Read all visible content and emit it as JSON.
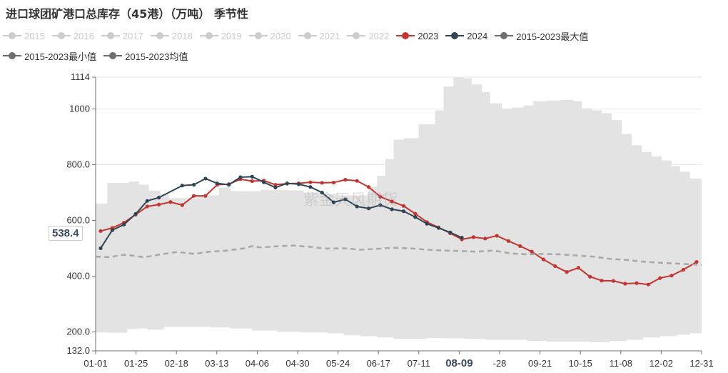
{
  "title": "进口球团矿港口总库存（45港）（万吨） 季节性",
  "watermark": "紫金天风期货",
  "legend_rows": [
    [
      {
        "label": "2015",
        "color": "#cccccc",
        "off": true
      },
      {
        "label": "2016",
        "color": "#cccccc",
        "off": true
      },
      {
        "label": "2017",
        "color": "#cccccc",
        "off": true
      },
      {
        "label": "2018",
        "color": "#cccccc",
        "off": true
      },
      {
        "label": "2019",
        "color": "#cccccc",
        "off": true
      },
      {
        "label": "2020",
        "color": "#cccccc",
        "off": true
      },
      {
        "label": "2021",
        "color": "#cccccc",
        "off": true
      },
      {
        "label": "2022",
        "color": "#cccccc",
        "off": true
      },
      {
        "label": "2023",
        "color": "#c23531",
        "off": false
      },
      {
        "label": "2024",
        "color": "#2f4554",
        "off": false
      },
      {
        "label": "2015-2023最大值",
        "color": "#6e6e6e",
        "off": false
      }
    ],
    [
      {
        "label": "2015-2023最小值",
        "color": "#6e6e6e",
        "off": false
      },
      {
        "label": "2015-2023均值",
        "color": "#6e6e6e",
        "off": false
      }
    ]
  ],
  "pointer": {
    "y_label": "538.4",
    "x_label": "08-09"
  },
  "chart_data": {
    "type": "line",
    "title": "进口球团矿港口总库存（45港）（万吨） 季节性",
    "x_ticks": [
      "01-01",
      "01-25",
      "02-18",
      "03-13",
      "04-06",
      "04-30",
      "05-24",
      "06-17",
      "07-11",
      "08-09",
      "-28",
      "09-21",
      "10-15",
      "11-08",
      "12-02",
      "12-31"
    ],
    "y_ticks": [
      "132.0",
      "200.0",
      "400.0",
      "600.0",
      "800.0",
      "1000",
      "1114"
    ],
    "ylim": [
      132,
      1114
    ],
    "xlim_days": [
      1,
      365
    ],
    "band_max": [
      [
        1,
        660
      ],
      [
        7,
        660
      ],
      [
        8,
        735
      ],
      [
        21,
        740
      ],
      [
        27,
        728
      ],
      [
        33,
        707
      ],
      [
        40,
        695
      ],
      [
        45,
        680
      ],
      [
        62,
        690
      ],
      [
        75,
        718
      ],
      [
        82,
        705
      ],
      [
        100,
        710
      ],
      [
        116,
        708
      ],
      [
        126,
        700
      ],
      [
        137,
        695
      ],
      [
        147,
        690
      ],
      [
        160,
        690
      ],
      [
        165,
        720
      ],
      [
        170,
        760
      ],
      [
        175,
        820
      ],
      [
        180,
        890
      ],
      [
        186,
        895
      ],
      [
        195,
        945
      ],
      [
        205,
        995
      ],
      [
        210,
        1080
      ],
      [
        216,
        1114
      ],
      [
        222,
        1110
      ],
      [
        227,
        1088
      ],
      [
        233,
        1060
      ],
      [
        238,
        1020
      ],
      [
        245,
        1000
      ],
      [
        251,
        1005
      ],
      [
        258,
        1012
      ],
      [
        264,
        1028
      ],
      [
        272,
        1030
      ],
      [
        280,
        1032
      ],
      [
        288,
        1028
      ],
      [
        293,
        1002
      ],
      [
        299,
        995
      ],
      [
        305,
        985
      ],
      [
        311,
        960
      ],
      [
        317,
        910
      ],
      [
        323,
        870
      ],
      [
        329,
        845
      ],
      [
        335,
        830
      ],
      [
        341,
        815
      ],
      [
        347,
        795
      ],
      [
        352,
        775
      ],
      [
        358,
        750
      ],
      [
        365,
        730
      ]
    ],
    "band_min": [
      [
        1,
        198
      ],
      [
        7,
        198
      ],
      [
        8,
        197
      ],
      [
        20,
        210
      ],
      [
        26,
        212
      ],
      [
        32,
        208
      ],
      [
        42,
        218
      ],
      [
        55,
        218
      ],
      [
        70,
        216
      ],
      [
        82,
        212
      ],
      [
        95,
        205
      ],
      [
        110,
        200
      ],
      [
        125,
        198
      ],
      [
        140,
        195
      ],
      [
        150,
        188
      ],
      [
        160,
        185
      ],
      [
        170,
        180
      ],
      [
        180,
        175
      ],
      [
        190,
        175
      ],
      [
        200,
        178
      ],
      [
        210,
        177
      ],
      [
        222,
        175
      ],
      [
        235,
        172
      ],
      [
        248,
        172
      ],
      [
        260,
        168
      ],
      [
        272,
        165
      ],
      [
        285,
        165
      ],
      [
        298,
        163
      ],
      [
        310,
        168
      ],
      [
        320,
        172
      ],
      [
        330,
        180
      ],
      [
        340,
        185
      ],
      [
        350,
        190
      ],
      [
        358,
        195
      ],
      [
        365,
        200
      ]
    ],
    "series": [
      {
        "name": "2023",
        "color": "#c23531",
        "points": [
          [
            4,
            562
          ],
          [
            11,
            573
          ],
          [
            18,
            592
          ],
          [
            25,
            621
          ],
          [
            32,
            650
          ],
          [
            39,
            657
          ],
          [
            46,
            666
          ],
          [
            53,
            655
          ],
          [
            60,
            688
          ],
          [
            67,
            688
          ],
          [
            74,
            728
          ],
          [
            81,
            730
          ],
          [
            88,
            748
          ],
          [
            95,
            741
          ],
          [
            102,
            743
          ],
          [
            109,
            728
          ],
          [
            116,
            732
          ],
          [
            123,
            733
          ],
          [
            130,
            737
          ],
          [
            137,
            735
          ],
          [
            144,
            736
          ],
          [
            151,
            746
          ],
          [
            158,
            742
          ],
          [
            165,
            720
          ],
          [
            172,
            685
          ],
          [
            179,
            668
          ],
          [
            186,
            652
          ],
          [
            193,
            624
          ],
          [
            200,
            594
          ],
          [
            207,
            575
          ],
          [
            214,
            554
          ],
          [
            221,
            532
          ],
          [
            228,
            540
          ],
          [
            235,
            535
          ],
          [
            242,
            545
          ],
          [
            249,
            526
          ],
          [
            256,
            508
          ],
          [
            263,
            488
          ],
          [
            270,
            460
          ],
          [
            277,
            436
          ],
          [
            284,
            415
          ],
          [
            291,
            430
          ],
          [
            298,
            398
          ],
          [
            305,
            384
          ],
          [
            312,
            383
          ],
          [
            319,
            373
          ],
          [
            326,
            375
          ],
          [
            333,
            370
          ],
          [
            340,
            393
          ],
          [
            347,
            402
          ],
          [
            354,
            423
          ],
          [
            362,
            451
          ]
        ]
      },
      {
        "name": "2024",
        "color": "#2f4554",
        "points": [
          [
            4,
            500
          ],
          [
            11,
            565
          ],
          [
            18,
            585
          ],
          [
            25,
            623
          ],
          [
            32,
            670
          ],
          [
            39,
            682
          ],
          [
            53,
            725
          ],
          [
            60,
            728
          ],
          [
            67,
            750
          ],
          [
            74,
            733
          ],
          [
            81,
            728
          ],
          [
            88,
            755
          ],
          [
            95,
            757
          ],
          [
            102,
            737
          ],
          [
            109,
            718
          ],
          [
            116,
            733
          ],
          [
            123,
            730
          ],
          [
            130,
            720
          ],
          [
            137,
            700
          ],
          [
            144,
            665
          ],
          [
            151,
            676
          ],
          [
            158,
            650
          ],
          [
            165,
            643
          ],
          [
            172,
            655
          ],
          [
            179,
            640
          ],
          [
            186,
            633
          ],
          [
            193,
            612
          ],
          [
            200,
            588
          ],
          [
            207,
            573
          ],
          [
            214,
            557
          ],
          [
            221,
            538
          ]
        ]
      },
      {
        "name": "2015-2023均值",
        "color": "#a8a8a8",
        "dashed": true,
        "points": [
          [
            1,
            470
          ],
          [
            10,
            468
          ],
          [
            15,
            475
          ],
          [
            20,
            477
          ],
          [
            25,
            472
          ],
          [
            30,
            468
          ],
          [
            40,
            478
          ],
          [
            50,
            487
          ],
          [
            60,
            480
          ],
          [
            70,
            488
          ],
          [
            80,
            492
          ],
          [
            90,
            500
          ],
          [
            95,
            508
          ],
          [
            100,
            503
          ],
          [
            110,
            507
          ],
          [
            120,
            510
          ],
          [
            130,
            505
          ],
          [
            140,
            499
          ],
          [
            150,
            500
          ],
          [
            160,
            495
          ],
          [
            170,
            498
          ],
          [
            180,
            502
          ],
          [
            190,
            500
          ],
          [
            200,
            495
          ],
          [
            210,
            492
          ],
          [
            220,
            490
          ],
          [
            230,
            488
          ],
          [
            240,
            492
          ],
          [
            250,
            482
          ],
          [
            260,
            478
          ],
          [
            270,
            480
          ],
          [
            280,
            478
          ],
          [
            290,
            474
          ],
          [
            300,
            470
          ],
          [
            310,
            462
          ],
          [
            320,
            458
          ],
          [
            330,
            452
          ],
          [
            340,
            448
          ],
          [
            350,
            445
          ],
          [
            360,
            442
          ],
          [
            365,
            440
          ]
        ]
      }
    ]
  }
}
